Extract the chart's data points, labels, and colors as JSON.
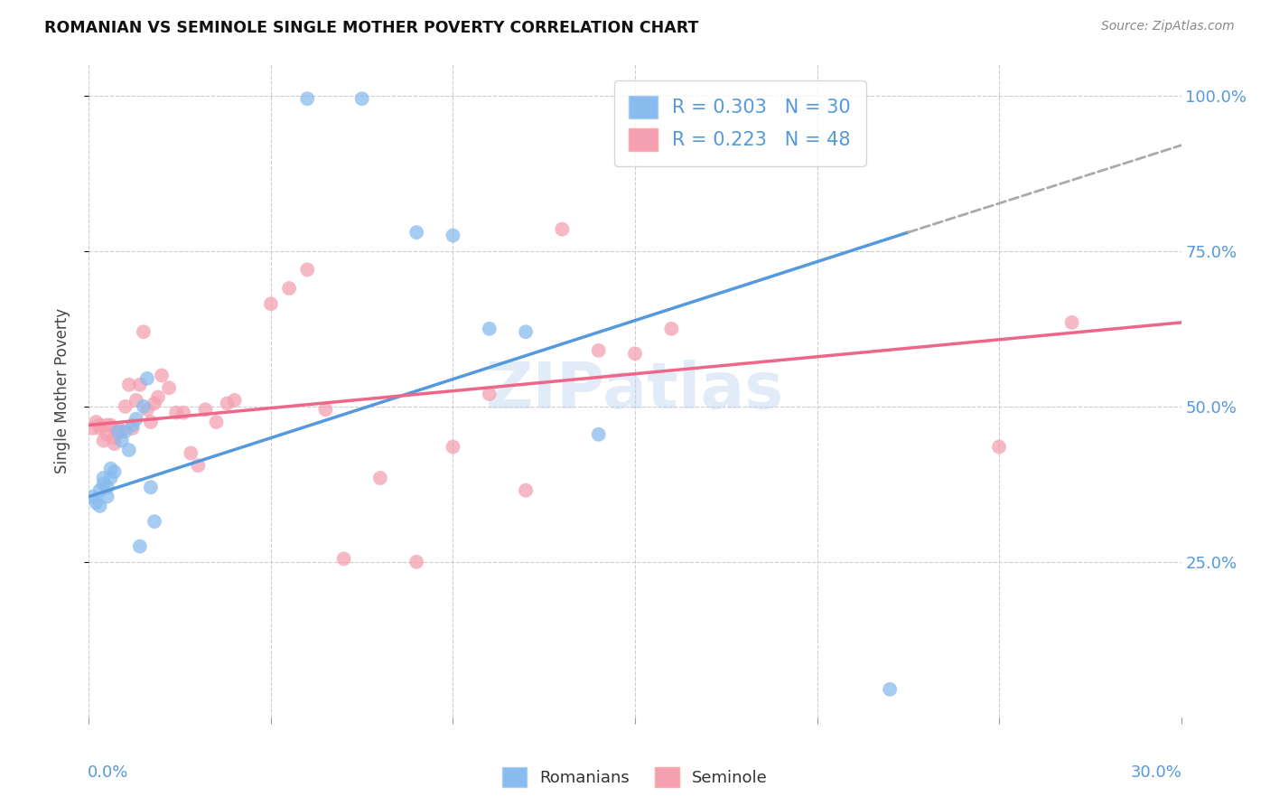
{
  "title": "ROMANIAN VS SEMINOLE SINGLE MOTHER POVERTY CORRELATION CHART",
  "source": "Source: ZipAtlas.com",
  "ylabel": "Single Mother Poverty",
  "color_romanian": "#88bbee",
  "color_seminole": "#f4a0b0",
  "color_trendline_romanian": "#5599dd",
  "color_trendline_seminole": "#ee6688",
  "watermark": "ZIPatlas",
  "xlim": [
    0.0,
    0.3
  ],
  "ylim": [
    0.0,
    1.05
  ],
  "romanians_x": [
    0.001,
    0.002,
    0.003,
    0.003,
    0.004,
    0.004,
    0.005,
    0.005,
    0.006,
    0.006,
    0.007,
    0.008,
    0.009,
    0.01,
    0.011,
    0.012,
    0.013,
    0.014,
    0.015,
    0.016,
    0.017,
    0.018,
    0.06,
    0.075,
    0.09,
    0.1,
    0.11,
    0.12,
    0.14,
    0.22
  ],
  "romanians_y": [
    0.355,
    0.345,
    0.365,
    0.34,
    0.385,
    0.375,
    0.37,
    0.355,
    0.4,
    0.385,
    0.395,
    0.46,
    0.445,
    0.46,
    0.43,
    0.47,
    0.48,
    0.275,
    0.5,
    0.545,
    0.37,
    0.315,
    0.995,
    0.995,
    0.78,
    0.775,
    0.625,
    0.62,
    0.455,
    0.045
  ],
  "seminoles_x": [
    0.001,
    0.002,
    0.003,
    0.003,
    0.004,
    0.005,
    0.005,
    0.006,
    0.007,
    0.007,
    0.008,
    0.009,
    0.01,
    0.011,
    0.012,
    0.013,
    0.014,
    0.015,
    0.016,
    0.017,
    0.018,
    0.019,
    0.02,
    0.022,
    0.024,
    0.026,
    0.028,
    0.03,
    0.032,
    0.035,
    0.038,
    0.04,
    0.05,
    0.055,
    0.06,
    0.065,
    0.07,
    0.08,
    0.09,
    0.1,
    0.11,
    0.12,
    0.13,
    0.14,
    0.15,
    0.16,
    0.25,
    0.27
  ],
  "seminoles_y": [
    0.465,
    0.475,
    0.465,
    0.47,
    0.445,
    0.455,
    0.47,
    0.47,
    0.44,
    0.45,
    0.465,
    0.46,
    0.5,
    0.535,
    0.465,
    0.51,
    0.535,
    0.62,
    0.495,
    0.475,
    0.505,
    0.515,
    0.55,
    0.53,
    0.49,
    0.49,
    0.425,
    0.405,
    0.495,
    0.475,
    0.505,
    0.51,
    0.665,
    0.69,
    0.72,
    0.495,
    0.255,
    0.385,
    0.25,
    0.435,
    0.52,
    0.365,
    0.785,
    0.59,
    0.585,
    0.625,
    0.435,
    0.635
  ],
  "trendline_rom_x0": 0.0,
  "trendline_rom_y0": 0.355,
  "trendline_rom_x1": 0.225,
  "trendline_rom_y1": 0.78,
  "trendline_rom_dash_x0": 0.225,
  "trendline_rom_dash_y0": 0.78,
  "trendline_rom_dash_x1": 0.3,
  "trendline_rom_dash_y1": 0.92,
  "trendline_sem_x0": 0.0,
  "trendline_sem_y0": 0.47,
  "trendline_sem_x1": 0.3,
  "trendline_sem_y1": 0.635
}
